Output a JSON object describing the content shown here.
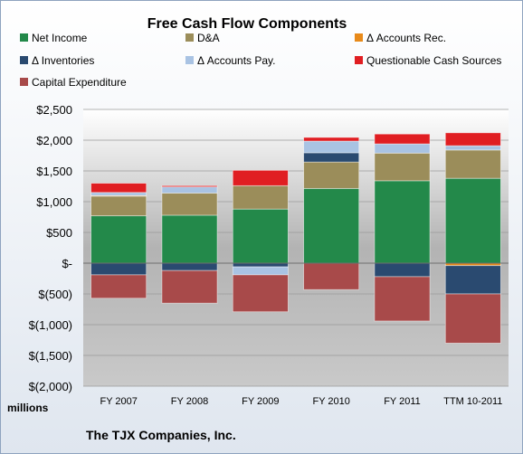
{
  "chart_data": {
    "type": "bar",
    "stacked": true,
    "title": "Free Cash Flow Components",
    "ylabel": "",
    "unit_label": "millions",
    "footer": "The TJX Companies, Inc.",
    "ylim": [
      -2000,
      2500
    ],
    "yticks": [
      {
        "value": 2500,
        "label": "$2,500"
      },
      {
        "value": 2000,
        "label": "$2,000"
      },
      {
        "value": 1500,
        "label": "$1,500"
      },
      {
        "value": 1000,
        "label": "$1,000"
      },
      {
        "value": 500,
        "label": "$500"
      },
      {
        "value": 0,
        "label": "$-"
      },
      {
        "value": -500,
        "label": "$(500)"
      },
      {
        "value": -1000,
        "label": "$(1,000)"
      },
      {
        "value": -1500,
        "label": "$(1,500)"
      },
      {
        "value": -2000,
        "label": "$(2,000)"
      }
    ],
    "categories": [
      "FY 2007",
      "FY 2008",
      "FY 2009",
      "FY 2010",
      "FY 2011",
      "TTM 10-2011"
    ],
    "legend_position": "top",
    "series": [
      {
        "name": "Net Income",
        "color": "#23894a",
        "values": [
          770,
          780,
          880,
          1215,
          1340,
          1380
        ]
      },
      {
        "name": "D&A",
        "color": "#9b8d5a",
        "values": [
          320,
          360,
          380,
          430,
          450,
          460
        ]
      },
      {
        "name": "Δ Accounts Rec.",
        "color": "#e88a1a",
        "values": [
          10,
          0,
          0,
          0,
          0,
          -40
        ]
      },
      {
        "name": "Δ Inventories",
        "color": "#2a4a70",
        "values": [
          -190,
          -120,
          -60,
          150,
          -220,
          -460
        ]
      },
      {
        "name": "Δ Accounts Pay.",
        "color": "#a9c3e3",
        "values": [
          50,
          100,
          -130,
          190,
          150,
          70
        ]
      },
      {
        "name": "Questionable Cash Sources",
        "color": "#e01e22",
        "values": [
          150,
          20,
          250,
          60,
          160,
          210
        ]
      },
      {
        "name": "Capital Expenditure",
        "color": "#a84a4a",
        "values": [
          -380,
          -530,
          -600,
          -430,
          -720,
          -800
        ]
      }
    ]
  }
}
